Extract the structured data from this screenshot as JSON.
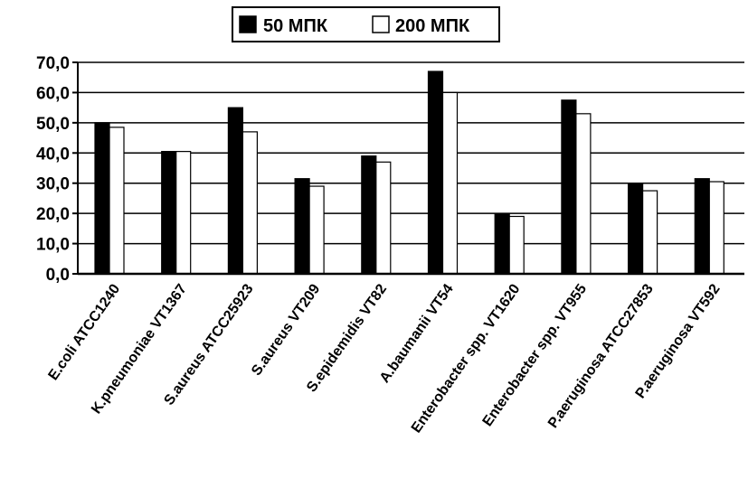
{
  "chart_data": {
    "type": "bar",
    "title": "",
    "xlabel": "",
    "ylabel": "",
    "ylim": [
      0,
      70
    ],
    "yticks": [
      "0,0",
      "10,0",
      "20,0",
      "30,0",
      "40,0",
      "50,0",
      "60,0",
      "70,0"
    ],
    "grid": true,
    "legend_position": "top",
    "categories": [
      "E.coli ATCC1240",
      "K.pneumoniae VT1367",
      "S.aureus ATCC25923",
      "S.aureus VT209",
      "S.epidemidis VT82",
      "A.baumanii VT54",
      "Enterobacter spp. VT1620",
      "Enterobacter spp. VT955",
      "P.aeruginosa ATCC27853",
      "P.aeruginosa VT592"
    ],
    "series": [
      {
        "name": "50 МПК",
        "color": "#000000",
        "values": [
          50,
          40.5,
          55,
          31.5,
          39,
          67,
          20,
          57.5,
          30,
          31.5
        ]
      },
      {
        "name": "200 МПК",
        "color": "#ffffff",
        "values": [
          48.5,
          40.5,
          47,
          29,
          37,
          60,
          19,
          53,
          27.5,
          30.5
        ]
      }
    ]
  }
}
